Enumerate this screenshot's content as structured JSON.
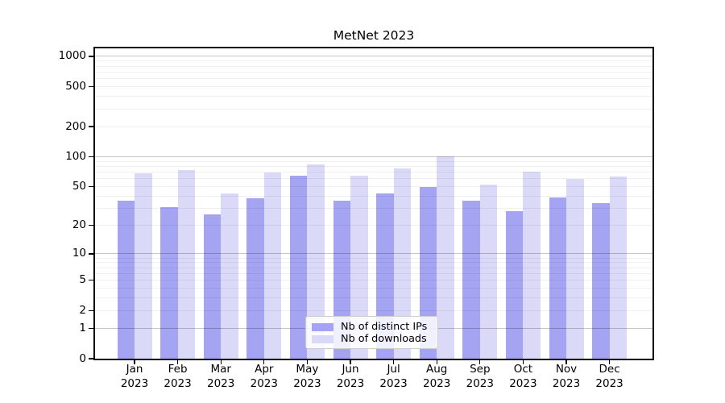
{
  "colors": {
    "distinct_ips": "#a4a4f3",
    "downloads": "#dadaf8",
    "spine": "#000000",
    "grid_major": "rgba(0,0,0,0.22)",
    "grid_minor": "rgba(0,0,0,0.06)"
  },
  "chart_data": {
    "type": "bar",
    "title": "MetNet 2023",
    "categories": [
      "Jan 2023",
      "Feb 2023",
      "Mar 2023",
      "Apr 2023",
      "May 2023",
      "Jun 2023",
      "Jul 2023",
      "Aug 2023",
      "Sep 2023",
      "Oct 2023",
      "Nov 2023",
      "Dec 2023"
    ],
    "series": [
      {
        "name": "Nb of distinct IPs",
        "color_key": "distinct_ips",
        "values": [
          36,
          31,
          26,
          38,
          65,
          36,
          43,
          50,
          36,
          28,
          39,
          34
        ]
      },
      {
        "name": "Nb of downloads",
        "color_key": "downloads",
        "values": [
          68,
          74,
          43,
          70,
          83,
          64,
          77,
          100,
          52,
          71,
          60,
          63
        ]
      }
    ],
    "xlabel": "",
    "ylabel": "",
    "y_scale": "log1p",
    "ylim": [
      0,
      1200
    ],
    "y_ticks": [
      0,
      1,
      2,
      5,
      10,
      20,
      50,
      100,
      200,
      500,
      1000
    ],
    "y_major_gridlines": [
      1,
      10,
      100,
      1000
    ],
    "grid": "on",
    "legend_position": "lower center"
  }
}
